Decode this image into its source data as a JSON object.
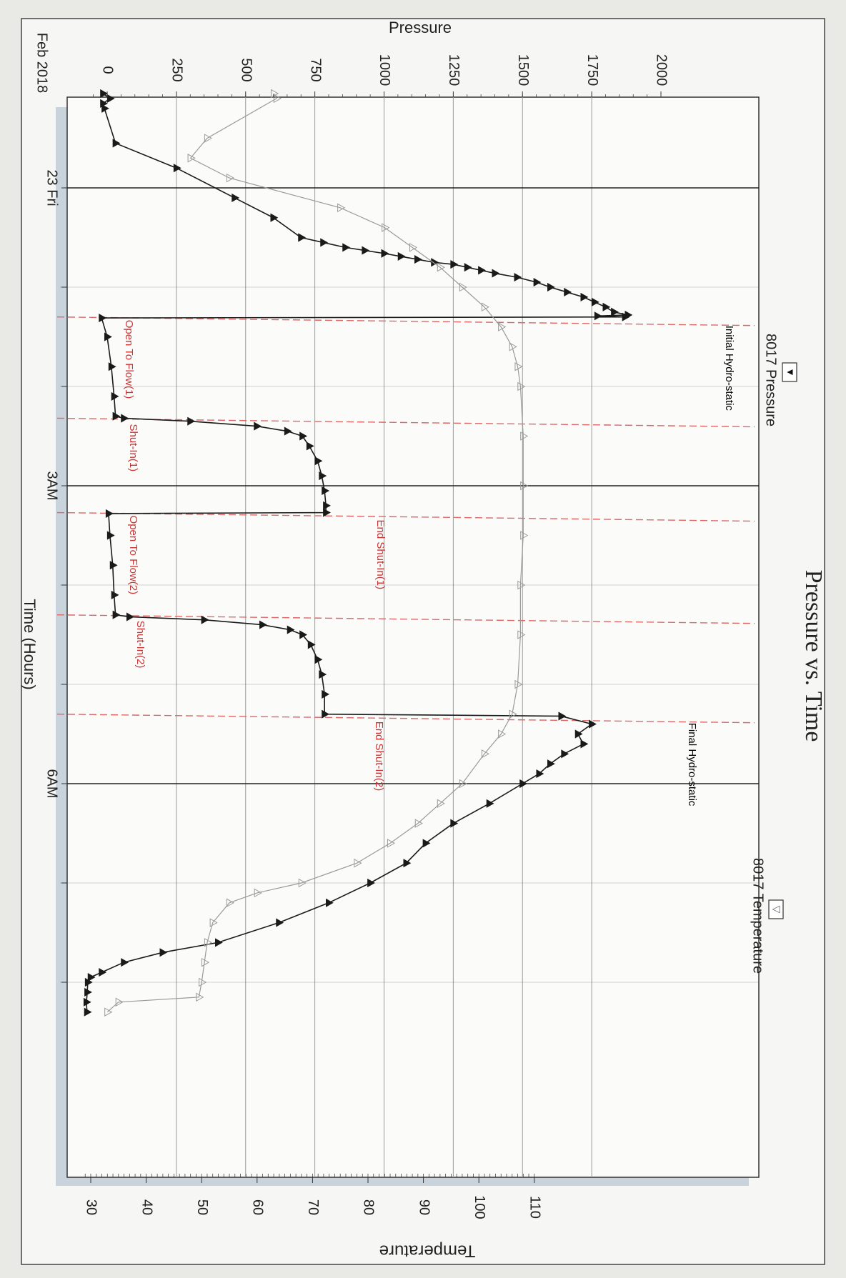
{
  "chart_data": {
    "type": "line",
    "title": "Pressure vs. Time",
    "xlabel": "Time (Hours)",
    "ylabel_left": "Pressure",
    "ylabel_right": "Temperature",
    "date_label": "Feb 2018",
    "x_ticks": [
      {
        "t": 0.0,
        "label": "23 Fri"
      },
      {
        "t": 3.0,
        "label": "3AM"
      },
      {
        "t": 6.0,
        "label": "6AM"
      }
    ],
    "xlim": [
      -1.25,
      8.5
    ],
    "pressure_ticks": [
      0,
      250,
      500,
      750,
      1000,
      1250,
      1500,
      1750,
      2000
    ],
    "pressure_lim": [
      -100,
      2000
    ],
    "temperature_ticks": [
      30,
      40,
      50,
      60,
      70,
      80,
      90,
      100,
      110
    ],
    "temperature_lim": [
      28,
      110
    ],
    "grid": true,
    "legend": [
      {
        "name": "8017 Pressure",
        "marker": "▼",
        "placement": "top"
      },
      {
        "name": "8017 Temperature",
        "marker": "▽",
        "placement": "bottom"
      }
    ],
    "events": [
      {
        "t": 1.3,
        "label": "Initial Hydro-static",
        "color": "#000000"
      },
      {
        "t": 1.3,
        "label": "Open To Flow(1)",
        "color": "#cc3333"
      },
      {
        "t": 2.32,
        "label": "Shut-In(1)",
        "color": "#cc3333"
      },
      {
        "t": 3.27,
        "label": "End Shut-In(1)",
        "color": "#cc3333"
      },
      {
        "t": 3.27,
        "label": "Open To Flow(2)",
        "color": "#cc3333"
      },
      {
        "t": 4.3,
        "label": "Shut-In(2)",
        "color": "#cc3333"
      },
      {
        "t": 5.3,
        "label": "End Shut-In(2)",
        "color": "#cc3333"
      },
      {
        "t": 5.3,
        "label": "Final Hydro-static",
        "color": "#000000"
      }
    ],
    "series": [
      {
        "name": "8017 Pressure",
        "axis": "left",
        "color": "#1a1a1a",
        "marker": "filled-triangle",
        "points": [
          [
            -0.95,
            -15
          ],
          [
            -0.9,
            10
          ],
          [
            -0.85,
            -15
          ],
          [
            -0.8,
            -10
          ],
          [
            -0.45,
            30
          ],
          [
            -0.2,
            250
          ],
          [
            0.1,
            460
          ],
          [
            0.3,
            600
          ],
          [
            0.5,
            700
          ],
          [
            0.55,
            780
          ],
          [
            0.6,
            860
          ],
          [
            0.63,
            930
          ],
          [
            0.66,
            1000
          ],
          [
            0.69,
            1060
          ],
          [
            0.72,
            1120
          ],
          [
            0.75,
            1180
          ],
          [
            0.77,
            1250
          ],
          [
            0.8,
            1300
          ],
          [
            0.83,
            1350
          ],
          [
            0.86,
            1400
          ],
          [
            0.9,
            1480
          ],
          [
            0.95,
            1550
          ],
          [
            1.0,
            1600
          ],
          [
            1.05,
            1660
          ],
          [
            1.1,
            1720
          ],
          [
            1.15,
            1760
          ],
          [
            1.2,
            1800
          ],
          [
            1.25,
            1830
          ],
          [
            1.28,
            1880
          ],
          [
            1.29,
            1770
          ],
          [
            1.3,
            1870
          ],
          [
            1.31,
            -20
          ],
          [
            1.5,
            0
          ],
          [
            1.8,
            15
          ],
          [
            2.1,
            25
          ],
          [
            2.3,
            30
          ],
          [
            2.32,
            60
          ],
          [
            2.35,
            300
          ],
          [
            2.4,
            540
          ],
          [
            2.45,
            650
          ],
          [
            2.5,
            705
          ],
          [
            2.6,
            730
          ],
          [
            2.75,
            760
          ],
          [
            2.9,
            775
          ],
          [
            3.05,
            785
          ],
          [
            3.2,
            790
          ],
          [
            3.27,
            790
          ],
          [
            3.28,
            5
          ],
          [
            3.5,
            10
          ],
          [
            3.8,
            20
          ],
          [
            4.1,
            25
          ],
          [
            4.3,
            30
          ],
          [
            4.32,
            80
          ],
          [
            4.35,
            350
          ],
          [
            4.4,
            560
          ],
          [
            4.45,
            660
          ],
          [
            4.5,
            705
          ],
          [
            4.6,
            735
          ],
          [
            4.75,
            760
          ],
          [
            4.9,
            775
          ],
          [
            5.1,
            785
          ],
          [
            5.3,
            785
          ],
          [
            5.32,
            1640
          ],
          [
            5.4,
            1750
          ],
          [
            5.5,
            1700
          ],
          [
            5.6,
            1720
          ],
          [
            5.7,
            1650
          ],
          [
            5.8,
            1600
          ],
          [
            5.9,
            1560
          ],
          [
            6.0,
            1500
          ],
          [
            6.2,
            1380
          ],
          [
            6.4,
            1250
          ],
          [
            6.6,
            1150
          ],
          [
            6.8,
            1080
          ],
          [
            7.0,
            950
          ],
          [
            7.2,
            800
          ],
          [
            7.4,
            620
          ],
          [
            7.6,
            400
          ],
          [
            7.7,
            200
          ],
          [
            7.8,
            60
          ],
          [
            7.9,
            -20
          ],
          [
            7.95,
            -60
          ],
          [
            8.0,
            -70
          ],
          [
            8.1,
            -72
          ],
          [
            8.2,
            -75
          ],
          [
            8.3,
            -73
          ]
        ]
      },
      {
        "name": "8017 Temperature",
        "axis": "right",
        "color": "#9a9a9a",
        "marker": "open-triangle",
        "points": [
          [
            -0.95,
            63
          ],
          [
            -0.9,
            63.5
          ],
          [
            -0.5,
            51
          ],
          [
            -0.3,
            48
          ],
          [
            -0.1,
            55
          ],
          [
            0.2,
            75
          ],
          [
            0.4,
            83
          ],
          [
            0.6,
            88
          ],
          [
            0.8,
            93
          ],
          [
            1.0,
            97
          ],
          [
            1.2,
            101
          ],
          [
            1.4,
            104
          ],
          [
            1.6,
            106
          ],
          [
            1.8,
            107
          ],
          [
            2.0,
            107.5
          ],
          [
            2.5,
            108
          ],
          [
            3.0,
            108
          ],
          [
            3.5,
            108
          ],
          [
            4.0,
            107.5
          ],
          [
            4.5,
            107.5
          ],
          [
            5.0,
            107
          ],
          [
            5.3,
            106
          ],
          [
            5.5,
            104
          ],
          [
            5.7,
            101
          ],
          [
            6.0,
            97
          ],
          [
            6.2,
            93
          ],
          [
            6.4,
            89
          ],
          [
            6.6,
            84
          ],
          [
            6.8,
            78
          ],
          [
            7.0,
            68
          ],
          [
            7.1,
            60
          ],
          [
            7.2,
            55
          ],
          [
            7.4,
            52
          ],
          [
            7.6,
            51
          ],
          [
            7.8,
            50.5
          ],
          [
            8.0,
            50
          ],
          [
            8.15,
            49.5
          ],
          [
            8.2,
            35
          ],
          [
            8.3,
            33
          ]
        ]
      }
    ]
  }
}
